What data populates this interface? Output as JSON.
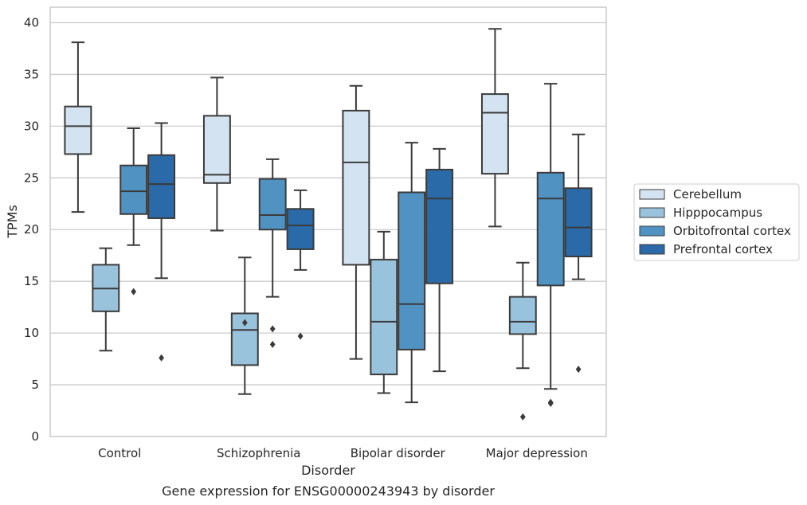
{
  "chart_data": {
    "type": "box",
    "title": "",
    "caption": "Gene expression for ENSG00000243943 by disorder",
    "xlabel": "Disorder",
    "ylabel": "TPMs",
    "ylim": [
      0,
      41.5
    ],
    "yticks": [
      0,
      5,
      10,
      15,
      20,
      25,
      30,
      35,
      40
    ],
    "grid": "horizontal",
    "legend_position": "right",
    "categories": [
      "Control",
      "Schizophrenia",
      "Bipolar disorder",
      "Major depression"
    ],
    "series": [
      {
        "name": "Cerebellum",
        "color": "#d4e3f1",
        "boxes": [
          {
            "whislo": 21.7,
            "q1": 27.3,
            "med": 30.0,
            "q3": 31.9,
            "whishi": 38.1,
            "fliers": []
          },
          {
            "whislo": 19.9,
            "q1": 24.5,
            "med": 25.3,
            "q3": 31.0,
            "whishi": 34.7,
            "fliers": []
          },
          {
            "whislo": 7.5,
            "q1": 16.6,
            "med": 26.5,
            "q3": 31.5,
            "whishi": 33.9,
            "fliers": []
          },
          {
            "whislo": 20.3,
            "q1": 25.4,
            "med": 31.3,
            "q3": 33.1,
            "whishi": 39.4,
            "fliers": []
          }
        ]
      },
      {
        "name": "Hipppocampus",
        "color": "#99c3dd",
        "boxes": [
          {
            "whislo": 8.3,
            "q1": 12.1,
            "med": 14.3,
            "q3": 16.6,
            "whishi": 18.2,
            "fliers": []
          },
          {
            "whislo": 4.1,
            "q1": 6.9,
            "med": 10.3,
            "q3": 11.9,
            "whishi": 17.3,
            "fliers": [
              11.0
            ]
          },
          {
            "whislo": 4.2,
            "q1": 6.0,
            "med": 11.1,
            "q3": 17.1,
            "whishi": 19.8,
            "fliers": []
          },
          {
            "whislo": 6.6,
            "q1": 9.9,
            "med": 11.1,
            "q3": 13.5,
            "whishi": 16.8,
            "fliers": [
              1.9
            ]
          }
        ]
      },
      {
        "name": "Orbitofrontal cortex",
        "color": "#5093c3",
        "boxes": [
          {
            "whislo": 18.5,
            "q1": 21.5,
            "med": 23.7,
            "q3": 26.2,
            "whishi": 29.8,
            "fliers": [
              14.0
            ]
          },
          {
            "whislo": 13.5,
            "q1": 20.0,
            "med": 21.4,
            "q3": 24.9,
            "whishi": 26.8,
            "fliers": [
              10.4,
              8.9
            ]
          },
          {
            "whislo": 3.3,
            "q1": 8.4,
            "med": 12.8,
            "q3": 23.6,
            "whishi": 28.4,
            "fliers": []
          },
          {
            "whislo": 4.6,
            "q1": 14.6,
            "med": 23.0,
            "q3": 25.5,
            "whishi": 34.1,
            "fliers": [
              3.2,
              3.3
            ]
          }
        ]
      },
      {
        "name": "Prefrontal cortex",
        "color": "#2b6aa8",
        "boxes": [
          {
            "whislo": 15.3,
            "q1": 21.1,
            "med": 24.4,
            "q3": 27.2,
            "whishi": 30.3,
            "fliers": [
              7.6
            ]
          },
          {
            "whislo": 16.1,
            "q1": 18.1,
            "med": 20.4,
            "q3": 22.0,
            "whishi": 23.8,
            "fliers": [
              9.7
            ]
          },
          {
            "whislo": 6.3,
            "q1": 14.8,
            "med": 23.0,
            "q3": 25.8,
            "whishi": 27.8,
            "fliers": []
          },
          {
            "whislo": 15.2,
            "q1": 17.4,
            "med": 20.2,
            "q3": 24.0,
            "whishi": 29.2,
            "fliers": [
              6.5
            ]
          }
        ]
      }
    ]
  }
}
